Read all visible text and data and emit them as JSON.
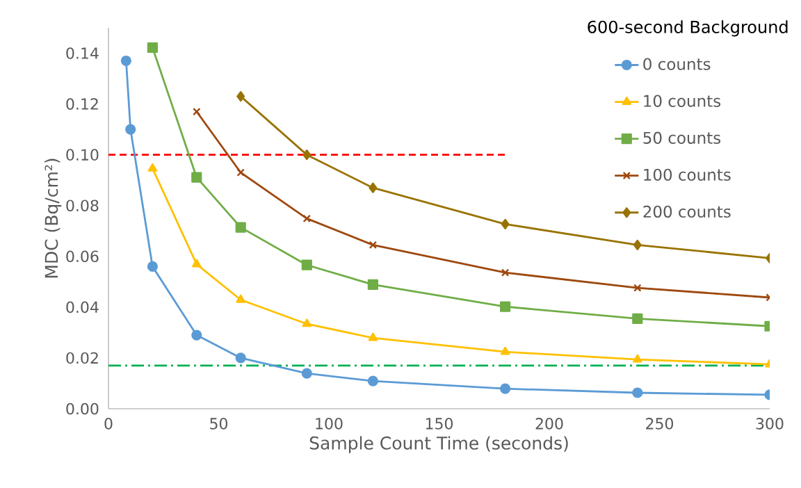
{
  "chart_data": {
    "type": "line",
    "xlabel": "Sample Count Time (seconds)",
    "ylabel": "MDC (Bq/cm²)",
    "legend_title": "600-second Background",
    "legend": "top right",
    "xlim": [
      0,
      300
    ],
    "xticks": [
      0,
      50,
      100,
      150,
      200,
      250,
      300
    ],
    "ylim": [
      0,
      0.15
    ],
    "yticks": [
      {
        "value": 0,
        "label": "0.00"
      },
      {
        "value": 0.02,
        "label": "0.02"
      },
      {
        "value": 0.04,
        "label": "0.04"
      },
      {
        "value": 0.06,
        "label": "0.06"
      },
      {
        "value": 0.08,
        "label": "0.08"
      },
      {
        "value": 0.1,
        "label": "0.10"
      },
      {
        "value": 0.12,
        "label": "0.12"
      },
      {
        "value": 0.14,
        "label": "0.14"
      }
    ],
    "series": [
      {
        "type": "line",
        "color": "#ff0000",
        "line_style": "dashed",
        "x": [
          0,
          180
        ],
        "values": [
          0.1,
          0.1
        ]
      },
      {
        "type": "line",
        "color": "#00b050",
        "line_style": "dashdot",
        "x": [
          0,
          300
        ],
        "values": [
          0.017,
          0.017
        ]
      },
      {
        "name": "0 counts",
        "color": "#5b9bd5",
        "marker": "circle",
        "x": [
          8,
          10,
          20,
          40,
          60,
          90,
          120,
          180,
          240,
          300
        ],
        "values": [
          0.137,
          0.11,
          0.056,
          0.029,
          0.02,
          0.0139,
          0.0109,
          0.0079,
          0.0063,
          0.0055
        ]
      },
      {
        "name": "10 counts",
        "color": "#ffc000",
        "marker": "triangle",
        "x": [
          20,
          40,
          60,
          90,
          120,
          180,
          240,
          300
        ],
        "values": [
          0.0946,
          0.0569,
          0.0429,
          0.0334,
          0.0279,
          0.0224,
          0.0194,
          0.0175
        ]
      },
      {
        "name": "50 counts",
        "color": "#70ad47",
        "marker": "square",
        "x": [
          20,
          40,
          60,
          90,
          120,
          180,
          240,
          300
        ],
        "values": [
          0.1422,
          0.0911,
          0.0714,
          0.0566,
          0.0489,
          0.0402,
          0.0355,
          0.0325
        ]
      },
      {
        "name": "100 counts",
        "color": "#9e480e",
        "marker": "cross",
        "x": [
          40,
          60,
          90,
          120,
          180,
          240,
          300
        ],
        "values": [
          0.117,
          0.093,
          0.0749,
          0.0645,
          0.0536,
          0.0476,
          0.0438
        ]
      },
      {
        "name": "200 counts",
        "color": "#997300",
        "marker": "diamond",
        "x": [
          60,
          90,
          120,
          180,
          240,
          300
        ],
        "values": [
          0.123,
          0.1,
          0.087,
          0.0727,
          0.0645,
          0.0593
        ]
      }
    ]
  }
}
